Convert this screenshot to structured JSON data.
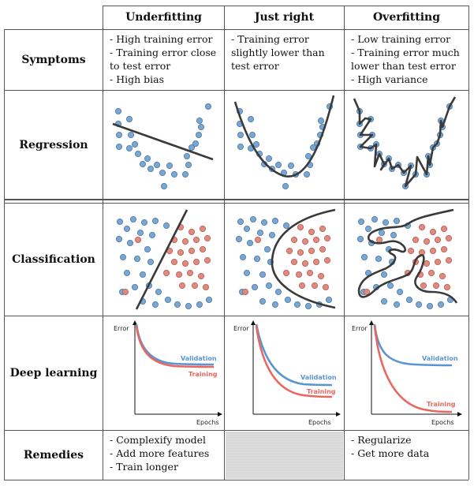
{
  "columns": [
    "Underfitting",
    "Just right",
    "Overfitting"
  ],
  "rows": [
    "Symptoms",
    "Regression",
    "Classification",
    "Deep learning",
    "Remedies"
  ],
  "symptoms": {
    "underfitting": "- High training error\n- Training error close\nto test error\n- High bias",
    "just_right": "- Training error\nslightly lower than\ntest error",
    "overfitting": "- Low training error\n- Training error much\nlower than test error\n- High variance"
  },
  "remedies": {
    "underfitting": "- Complexify model\n- Add more features\n- Train longer",
    "just_right": "",
    "overfitting": "- Regularize\n- Get more data"
  },
  "deep_learning": {
    "y_axis": "Error",
    "x_axis": "Epochs",
    "validation": "Validation",
    "training": "Training"
  },
  "colors": {
    "blue_points": "#7aa7d2",
    "red_points": "#e08a80",
    "validation": "#5b95d0",
    "training": "#e8675f",
    "model_line": "#3a3a3a"
  }
}
